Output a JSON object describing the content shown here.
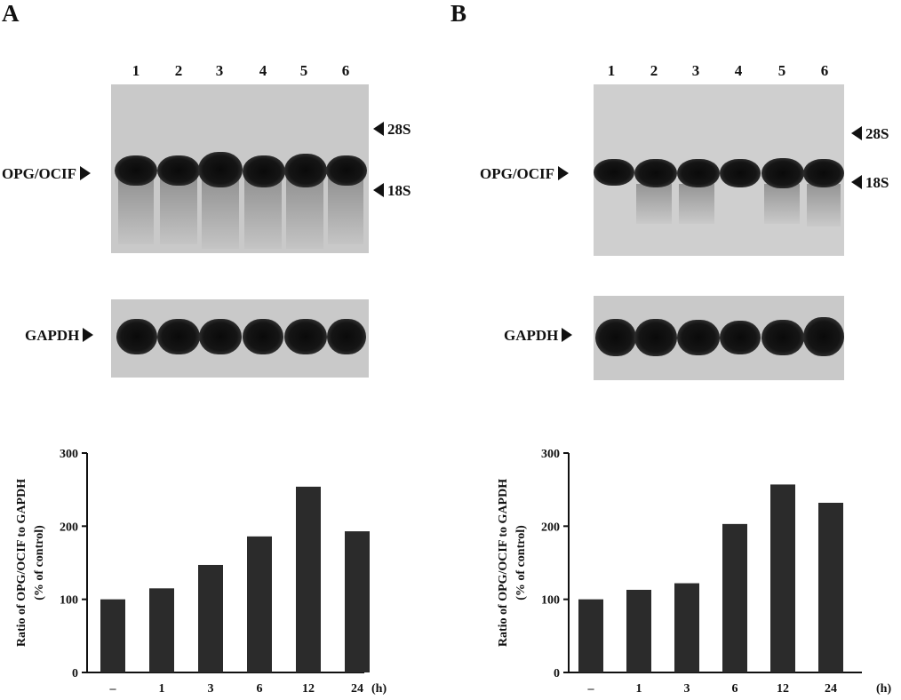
{
  "panels": [
    {
      "letter": "A",
      "lanes": [
        "1",
        "2",
        "3",
        "4",
        "5",
        "6"
      ],
      "blot_top_label": "OPG/OCIF",
      "marker_28s": "28S",
      "marker_18s": "18S",
      "blot_bottom_label": "GAPDH"
    },
    {
      "letter": "B",
      "lanes": [
        "1",
        "2",
        "3",
        "4",
        "5",
        "6"
      ],
      "blot_top_label": "OPG/OCIF",
      "marker_28s": "28S",
      "marker_18s": "18S",
      "blot_bottom_label": "GAPDH"
    }
  ],
  "chart_data": [
    {
      "type": "bar",
      "categories": [
        "–",
        "1",
        "3",
        "6",
        "12",
        "24"
      ],
      "values": [
        100,
        115,
        147,
        186,
        254,
        193
      ],
      "ylabel_line1": "Ratio of OPG/OCIF to GAPDH",
      "ylabel_line2": "(% of control)",
      "xunit": "(h)",
      "yticks": [
        0,
        100,
        200,
        300
      ],
      "ylim": [
        0,
        300
      ],
      "bar_color": "#2b2b2b"
    },
    {
      "type": "bar",
      "categories": [
        "–",
        "1",
        "3",
        "6",
        "12",
        "24"
      ],
      "values": [
        100,
        113,
        122,
        203,
        257,
        232
      ],
      "ylabel_line1": "Ratio of OPG/OCIF to GAPDH",
      "ylabel_line2": "(% of control)",
      "xunit": "(h)",
      "yticks": [
        0,
        100,
        200,
        300
      ],
      "ylim": [
        0,
        300
      ],
      "bar_color": "#2b2b2b"
    }
  ]
}
